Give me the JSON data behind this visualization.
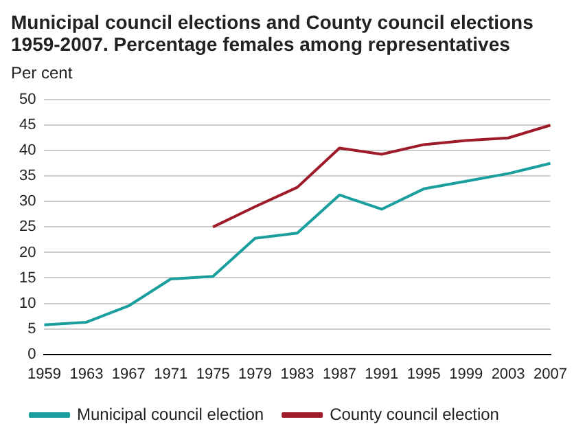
{
  "chart_data": {
    "type": "line",
    "title": "Municipal council elections and County council elections 1959-2007. Percentage females among representatives",
    "ylabel": "Per cent",
    "categories": [
      "1959",
      "1963",
      "1967",
      "1971",
      "1975",
      "1979",
      "1983",
      "1987",
      "1991",
      "1995",
      "1999",
      "2003",
      "2007"
    ],
    "series": [
      {
        "name": "Municipal council election",
        "color": "#1a9e9e",
        "values": [
          5.8,
          6.3,
          9.5,
          14.8,
          15.3,
          22.8,
          23.8,
          31.3,
          28.5,
          32.5,
          34,
          35.5,
          37.5
        ]
      },
      {
        "name": "County council election",
        "color": "#9e1b2a",
        "values": [
          null,
          null,
          null,
          null,
          25,
          29,
          32.8,
          40.5,
          39.3,
          41.2,
          42,
          42.5,
          45
        ]
      }
    ],
    "ylim": [
      0,
      50
    ],
    "yticks": [
      0,
      5,
      10,
      15,
      20,
      25,
      30,
      35,
      40,
      45,
      50
    ],
    "grid": "y",
    "legend": "bottom",
    "marker": "none",
    "line_style": "solid"
  }
}
